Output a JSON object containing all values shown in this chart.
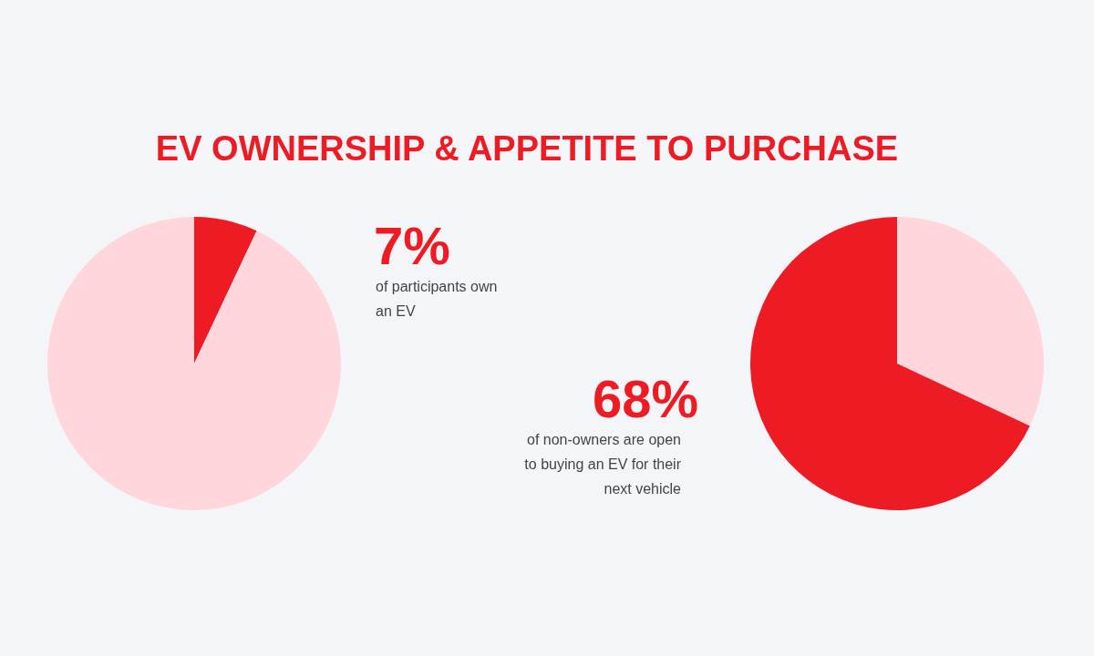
{
  "chart_data": [
    {
      "type": "pie",
      "title": "EV OWNERSHIP & APPETITE TO PURCHASE",
      "categories": [
        null,
        null
      ],
      "values": [
        7,
        93
      ],
      "colors": [
        "#ed1c24",
        "#ffd6db"
      ],
      "annotations": [
        "7%",
        "of participants own an EV"
      ]
    },
    {
      "type": "pie",
      "categories": [
        null,
        null
      ],
      "values": [
        32,
        68
      ],
      "colors": [
        "#ffd6db",
        "#ed1c24"
      ],
      "annotations": [
        "68%",
        "of non-owners are open to buying an EV for their next vehicle"
      ]
    }
  ]
}
